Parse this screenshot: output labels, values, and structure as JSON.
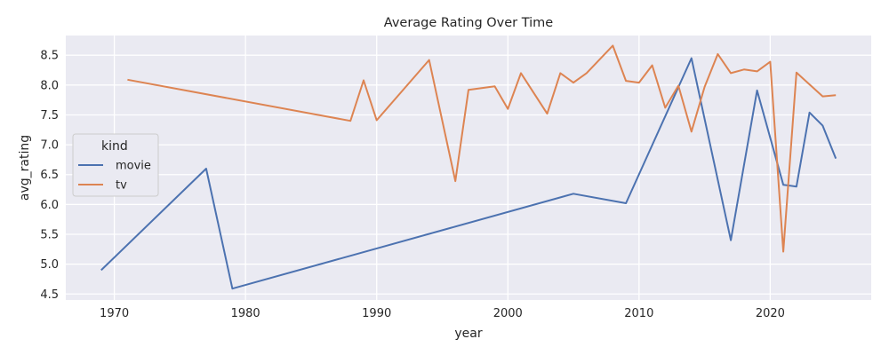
{
  "chart_data": {
    "type": "line",
    "title": "Average Rating Over Time",
    "xlabel": "year",
    "ylabel": "avg_rating",
    "xlim": [
      1966.3,
      2027.7
    ],
    "ylim": [
      4.4,
      8.83
    ],
    "x_ticks": [
      "1970",
      "1980",
      "1990",
      "2000",
      "2010",
      "2020"
    ],
    "y_ticks": [
      "4.5",
      "5.0",
      "5.5",
      "6.0",
      "6.5",
      "7.0",
      "7.5",
      "8.0",
      "8.5"
    ],
    "grid": true,
    "legend": {
      "title": "kind",
      "placement": "center-left"
    },
    "series": [
      {
        "name": "movie",
        "color": "#4c72b0",
        "x": [
          1969,
          1977,
          1979,
          2005,
          2009,
          2014,
          2017,
          2019,
          2021,
          2022,
          2023,
          2024,
          2025
        ],
        "y": [
          4.9,
          6.6,
          4.59,
          6.18,
          6.02,
          8.45,
          5.4,
          7.91,
          6.33,
          6.3,
          7.54,
          7.32,
          6.77
        ]
      },
      {
        "name": "tv",
        "color": "#dd8452",
        "x": [
          1971,
          1988,
          1989,
          1990,
          1994,
          1996,
          1997,
          1999,
          2000,
          2001,
          2003,
          2004,
          2005,
          2006,
          2008,
          2009,
          2010,
          2011,
          2012,
          2013,
          2014,
          2015,
          2016,
          2017,
          2018,
          2019,
          2020,
          2021,
          2022,
          2024,
          2025
        ],
        "y": [
          8.09,
          7.4,
          8.08,
          7.41,
          8.42,
          6.39,
          7.92,
          7.98,
          7.6,
          8.2,
          7.52,
          8.2,
          8.04,
          8.2,
          8.66,
          8.07,
          8.04,
          8.33,
          7.62,
          7.99,
          7.22,
          7.97,
          8.52,
          8.2,
          8.26,
          8.23,
          8.39,
          5.21,
          8.21,
          7.81,
          7.83
        ]
      }
    ]
  }
}
